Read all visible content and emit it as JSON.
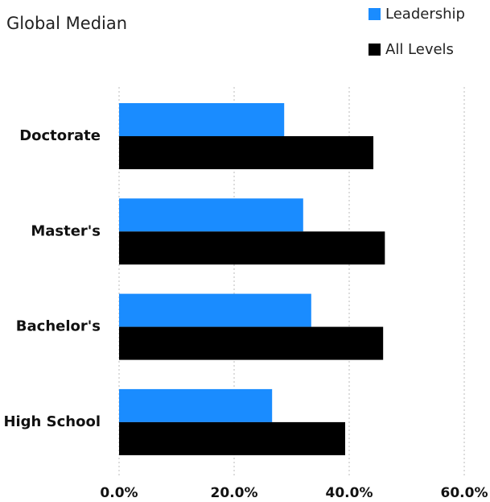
{
  "chart_data": {
    "type": "bar",
    "orientation": "horizontal",
    "title": "Global Median",
    "categories": [
      "Doctorate",
      "Master's",
      "Bachelor's",
      "High School"
    ],
    "series": [
      {
        "name": "Leadership",
        "color": "#1a8cff",
        "values": [
          28.7,
          32.0,
          33.4,
          26.6
        ]
      },
      {
        "name": "All Levels",
        "color": "#000000",
        "values": [
          44.2,
          46.2,
          45.9,
          39.3
        ]
      }
    ],
    "xlim": [
      0,
      60
    ],
    "xticks": [
      {
        "value": 0,
        "label": "0.0%"
      },
      {
        "value": 20,
        "label": "20.0%"
      },
      {
        "value": 40,
        "label": "40.0%"
      },
      {
        "value": 60,
        "label": "60.0%"
      }
    ],
    "grid": true,
    "legend": "top-right"
  }
}
